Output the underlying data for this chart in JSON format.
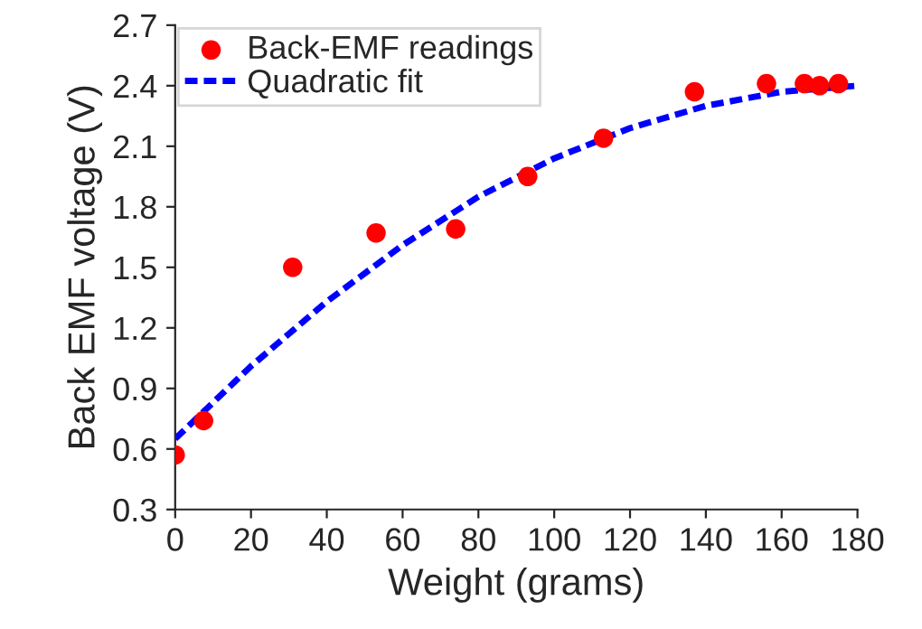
{
  "chart_data": {
    "type": "scatter",
    "xlabel": "Weight (grams)",
    "ylabel": "Back EMF voltage (V)",
    "series": [
      {
        "name": "Back-EMF readings",
        "color": "#ff0000",
        "marker": "circle",
        "x": [
          0,
          7.5,
          31,
          53,
          74,
          93,
          113,
          137,
          156,
          166,
          170,
          175
        ],
        "values": [
          0.57,
          0.74,
          1.5,
          1.67,
          1.69,
          1.95,
          2.14,
          2.37,
          2.41,
          2.41,
          2.4,
          2.41
        ]
      },
      {
        "name": "Quadratic fit",
        "type": "line",
        "color": "#0000ff",
        "line_style": "dashed",
        "marker": "none",
        "x": [
          0,
          20,
          40,
          60,
          80,
          100,
          120,
          140,
          160,
          180
        ],
        "values": [
          0.65,
          1.01,
          1.33,
          1.61,
          1.85,
          2.04,
          2.19,
          2.3,
          2.37,
          2.4
        ]
      }
    ],
    "xlim": [
      0,
      180
    ],
    "xticks": [
      0,
      20,
      40,
      60,
      80,
      100,
      120,
      140,
      160,
      180
    ],
    "ylim": [
      0.3,
      2.7
    ],
    "yticks": [
      0.3,
      0.6,
      0.9,
      1.2,
      1.5,
      1.8,
      2.1,
      2.4,
      2.7
    ],
    "grid": false,
    "legend": "top left"
  }
}
